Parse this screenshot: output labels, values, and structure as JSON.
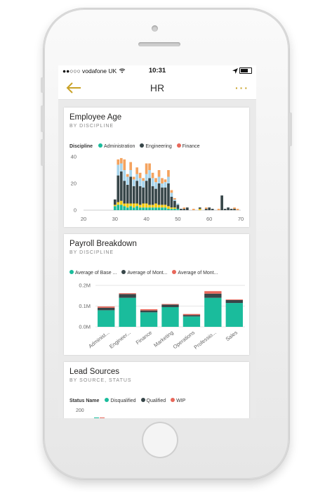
{
  "status": {
    "carrier": "vodafone UK",
    "time": "10:31"
  },
  "nav": {
    "title": "HR",
    "more": "···"
  },
  "colors": {
    "teal": "#1ABC9C",
    "dark": "#374649",
    "red": "#E8675A",
    "yellow": "#F2C80F",
    "lightblue": "#A6D4EC",
    "orange": "#F4A35F",
    "gold": "#C9A227"
  },
  "cards": {
    "employee_age": {
      "title": "Employee Age",
      "subtitle": "BY DISCIPLINE",
      "legend_title": "Discipline",
      "legend": [
        "Administration",
        "Engineering",
        "Finance"
      ]
    },
    "payroll": {
      "title": "Payroll Breakdown",
      "subtitle": "BY DISCIPLINE",
      "legend": [
        "Average of Base ...",
        "Average of Mont...",
        "Average of Mont..."
      ]
    },
    "lead_sources": {
      "title": "Lead Sources",
      "subtitle": "BY SOURCE, STATUS",
      "legend_title": "Status Name",
      "legend": [
        "Disqualified",
        "Qualified",
        "WIP"
      ],
      "y_top_label": "200"
    }
  },
  "chart_data": [
    {
      "type": "bar",
      "title": "Employee Age",
      "subtitle": "BY DISCIPLINE",
      "legend_title": "Discipline",
      "ylim": [
        0,
        40
      ],
      "xlim": [
        20,
        70
      ],
      "x_ticks": [
        "20",
        "30",
        "40",
        "50",
        "60",
        "70"
      ],
      "y_ticks": [
        "0",
        "20",
        "40"
      ],
      "segment_colors": [
        "#1ABC9C",
        "#F2C80F",
        "#374649",
        "#A6D4EC",
        "#F4A35F"
      ],
      "bars": [
        {
          "x": 30,
          "segments": [
            3,
            1,
            4,
            0,
            0
          ]
        },
        {
          "x": 31,
          "segments": [
            4,
            2,
            20,
            8,
            4
          ]
        },
        {
          "x": 32,
          "segments": [
            4,
            3,
            22,
            6,
            4
          ]
        },
        {
          "x": 33,
          "segments": [
            3,
            2,
            17,
            8,
            8
          ]
        },
        {
          "x": 34,
          "segments": [
            2,
            3,
            14,
            6,
            2
          ]
        },
        {
          "x": 35,
          "segments": [
            3,
            2,
            20,
            5,
            6
          ]
        },
        {
          "x": 36,
          "segments": [
            2,
            3,
            13,
            5,
            2
          ]
        },
        {
          "x": 37,
          "segments": [
            3,
            2,
            17,
            5,
            5
          ]
        },
        {
          "x": 38,
          "segments": [
            2,
            2,
            14,
            6,
            4
          ]
        },
        {
          "x": 39,
          "segments": [
            2,
            3,
            12,
            5,
            2
          ]
        },
        {
          "x": 40,
          "segments": [
            2,
            3,
            17,
            5,
            8
          ]
        },
        {
          "x": 41,
          "segments": [
            2,
            2,
            20,
            6,
            5
          ]
        },
        {
          "x": 42,
          "segments": [
            2,
            2,
            14,
            6,
            4
          ]
        },
        {
          "x": 43,
          "segments": [
            2,
            3,
            11,
            5,
            3
          ]
        },
        {
          "x": 44,
          "segments": [
            2,
            2,
            16,
            5,
            5
          ]
        },
        {
          "x": 45,
          "segments": [
            2,
            2,
            13,
            3,
            4
          ]
        },
        {
          "x": 46,
          "segments": [
            2,
            2,
            13,
            4,
            2
          ]
        },
        {
          "x": 47,
          "segments": [
            1,
            2,
            17,
            5,
            5
          ]
        },
        {
          "x": 48,
          "segments": [
            1,
            1,
            8,
            3,
            2
          ]
        },
        {
          "x": 49,
          "segments": [
            1,
            1,
            5,
            1,
            1
          ]
        },
        {
          "x": 50,
          "segments": [
            1,
            0,
            3,
            1,
            0
          ]
        },
        {
          "x": 51,
          "segments": [
            0,
            0,
            1,
            0,
            0
          ]
        },
        {
          "x": 52,
          "segments": [
            0,
            0,
            1,
            0,
            1
          ]
        },
        {
          "x": 53,
          "segments": [
            0,
            0,
            2,
            0,
            0
          ]
        },
        {
          "x": 55,
          "segments": [
            0,
            0,
            0,
            0,
            1
          ]
        },
        {
          "x": 57,
          "segments": [
            0,
            1,
            1,
            0,
            0
          ]
        },
        {
          "x": 59,
          "segments": [
            0,
            0,
            1,
            0,
            1
          ]
        },
        {
          "x": 60,
          "segments": [
            0,
            0,
            2,
            0,
            0
          ]
        },
        {
          "x": 61,
          "segments": [
            0,
            0,
            1,
            0,
            0
          ]
        },
        {
          "x": 63,
          "segments": [
            0,
            0,
            0,
            0,
            1
          ]
        },
        {
          "x": 64,
          "segments": [
            0,
            0,
            11,
            0,
            0
          ]
        },
        {
          "x": 65,
          "segments": [
            0,
            0,
            1,
            0,
            0
          ]
        },
        {
          "x": 66,
          "segments": [
            0,
            0,
            2,
            0,
            0
          ]
        },
        {
          "x": 67,
          "segments": [
            0,
            0,
            1,
            0,
            0
          ]
        },
        {
          "x": 68,
          "segments": [
            0,
            0,
            1,
            0,
            1
          ]
        },
        {
          "x": 69,
          "segments": [
            0,
            0,
            0,
            0,
            1
          ]
        }
      ],
      "grid": false
    },
    {
      "type": "bar",
      "title": "Payroll Breakdown",
      "subtitle": "BY DISCIPLINE",
      "categories": [
        "Administ...",
        "Engineer...",
        "Finance",
        "Marketing",
        "Operations",
        "Professio...",
        "Sales"
      ],
      "series": [
        {
          "name": "Average of Base ...",
          "color": "#1ABC9C",
          "values": [
            0.08,
            0.14,
            0.07,
            0.095,
            0.05,
            0.14,
            0.115
          ]
        },
        {
          "name": "Average of Mont...",
          "color": "#374649",
          "values": [
            0.012,
            0.018,
            0.009,
            0.012,
            0.007,
            0.02,
            0.014
          ]
        },
        {
          "name": "Average of Mont...",
          "color": "#E8675A",
          "values": [
            0.006,
            0.004,
            0.006,
            0.003,
            0.005,
            0.012,
            0.003
          ]
        }
      ],
      "y_ticks": [
        "0.0M",
        "0.1M",
        "0.2M"
      ],
      "ylim": [
        0,
        0.2
      ],
      "grid": true
    },
    {
      "type": "bar",
      "title": "Lead Sources",
      "subtitle": "BY SOURCE, STATUS",
      "legend_title": "Status Name",
      "series": [
        {
          "name": "Disqualified",
          "color": "#1ABC9C"
        },
        {
          "name": "Qualified",
          "color": "#374649"
        },
        {
          "name": "WIP",
          "color": "#E8675A"
        }
      ],
      "y_ticks": [
        "200"
      ]
    }
  ]
}
